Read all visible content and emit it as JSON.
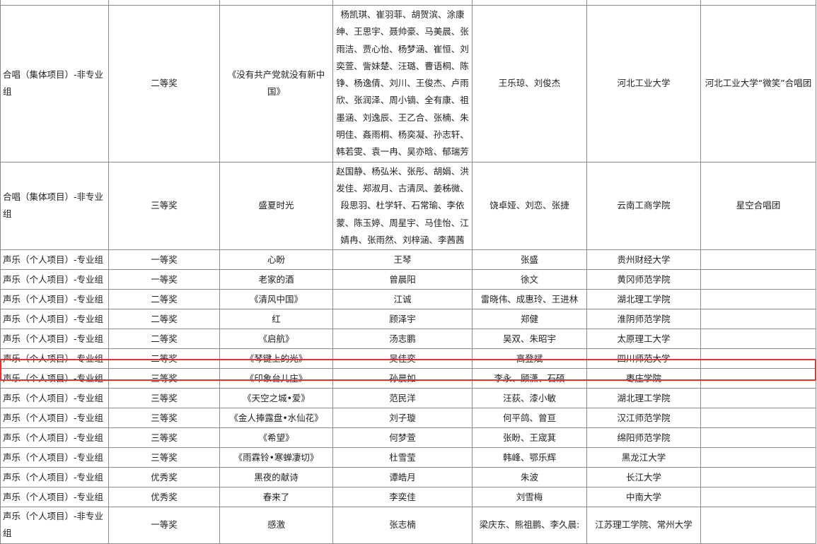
{
  "highlight_color": "#e8302c",
  "rows": [
    {
      "category": "",
      "award": "",
      "work": "",
      "performers": "",
      "instructors": "",
      "school": "",
      "group": ""
    },
    {
      "category": "合唱（集体项目）-非专业组",
      "award": "二等奖",
      "work": "《没有共产党就没有新中国》",
      "performers": "杨凯琪、崔羽菲、胡贺滨、涂康绅、王思宇、聂帅豪、马美晨、张雨洁、贾心怡、杨梦涵、崔恒、刘奕萱、訾妹楚、汪璐、曹语桐、陈铮、杨逸倩、刘川、王俊杰、卢雨欣、张润泽、周小镝、全有康、祖墨涵、刘逸辰、王乙合、张楠、朱明佳、姦雨桐、杨奕凝、孙志轩、韩若雯、袁一冉、吴亦晗、郁瑞芳",
      "instructors": "王乐琼、刘俊杰",
      "school": "河北工业大学",
      "group": "河北工业大学“微笑”合唱团"
    },
    {
      "category": "合唱（集体项目）-非专业组",
      "award": "三等奖",
      "work": "盛夏时光",
      "performers": "赵国静、杨弘米、张彤、胡娟、洪发佳、郑淑月、古清凤、姜秭微、段思羽、杜学轩、石常瑜、李依蒙、陈玉婷、周星宇、马佳怡、江婧冉、张雨然、刘梓涵、李茜茜",
      "instructors": "饶卓娅、刘恋、张捷",
      "school": "云南工商学院",
      "group": "星空合唱团"
    },
    {
      "category": "声乐（个人项目）-专业组",
      "award": "一等奖",
      "work": "心盼",
      "performers": "王琴",
      "instructors": "张盛",
      "school": "贵州财经大学",
      "group": ""
    },
    {
      "category": "声乐（个人项目）-专业组",
      "award": "一等奖",
      "work": "老家的酒",
      "performers": "曾晨阳",
      "instructors": "徐文",
      "school": "黄冈师范学院",
      "group": ""
    },
    {
      "category": "声乐（个人项目）-专业组",
      "award": "二等奖",
      "work": "《清风中国》",
      "performers": "江诚",
      "instructors": "雷晓伟、成惠玲、王进林",
      "school": "湖北理工学院",
      "group": ""
    },
    {
      "category": "声乐（个人项目）-专业组",
      "award": "二等奖",
      "work": "红",
      "performers": "顾泽宇",
      "instructors": "郑健",
      "school": "淮阴师范学院",
      "group": ""
    },
    {
      "category": "声乐（个人项目）-专业组",
      "award": "二等奖",
      "work": "《启航》",
      "performers": "汤志鹏",
      "instructors": "吴双、朱昭宇",
      "school": "太原理工大学",
      "group": ""
    },
    {
      "category": "声乐（个人项目）-专业组",
      "award": "二等奖",
      "work": "《琴键上的光》",
      "performers": "吴佳奕",
      "instructors": "高登斌",
      "school": "四川师范大学",
      "group": ""
    },
    {
      "category": "声乐（个人项目）-专业组",
      "award": "三等奖",
      "work": "《印象台儿庄》",
      "performers": "孙晨如",
      "instructors": "李永、顾潇、石硕",
      "school": "枣庄学院",
      "group": ""
    },
    {
      "category": "声乐（个人项目）-专业组",
      "award": "三等奖",
      "work": "《天空之城•爱》",
      "performers": "范民洋",
      "instructors": "汪荻、漆小敏",
      "school": "湖北理工学院",
      "group": ""
    },
    {
      "category": "声乐（个人项目）-专业组",
      "award": "三等奖",
      "work": "《金人捧露盘•水仙花》",
      "performers": "刘子璇",
      "instructors": "何平鸽、曾亘",
      "school": "汉江师范学院",
      "group": ""
    },
    {
      "category": "声乐（个人项目）-专业组",
      "award": "三等奖",
      "work": "《希望》",
      "performers": "何梦萱",
      "instructors": "张盼、王宬萁",
      "school": "绵阳师范学院",
      "group": ""
    },
    {
      "category": "声乐（个人项目）-专业组",
      "award": "三等奖",
      "work": "《雨霖铃•寒蝉凄切》",
      "performers": "杜雪莹",
      "instructors": "韩峰、鄂乐辉",
      "school": "黑龙江大学",
      "group": ""
    },
    {
      "category": "声乐（个人项目）-专业组",
      "award": "优秀奖",
      "work": "黑夜的献诗",
      "performers": "谭皓月",
      "instructors": "朱波",
      "school": "长江大学",
      "group": ""
    },
    {
      "category": "声乐（个人项目）-专业组",
      "award": "优秀奖",
      "work": "春来了",
      "performers": "李奕佳",
      "instructors": "刘雪梅",
      "school": "中南大学",
      "group": ""
    },
    {
      "category": "声乐（个人项目）-非专业组",
      "award": "一等奖",
      "work": "感激",
      "performers": "张志楠",
      "instructors": "梁庆东、熊祖鹏、李久晨:",
      "school": "江苏理工学院、常州大学",
      "group": ""
    }
  ]
}
